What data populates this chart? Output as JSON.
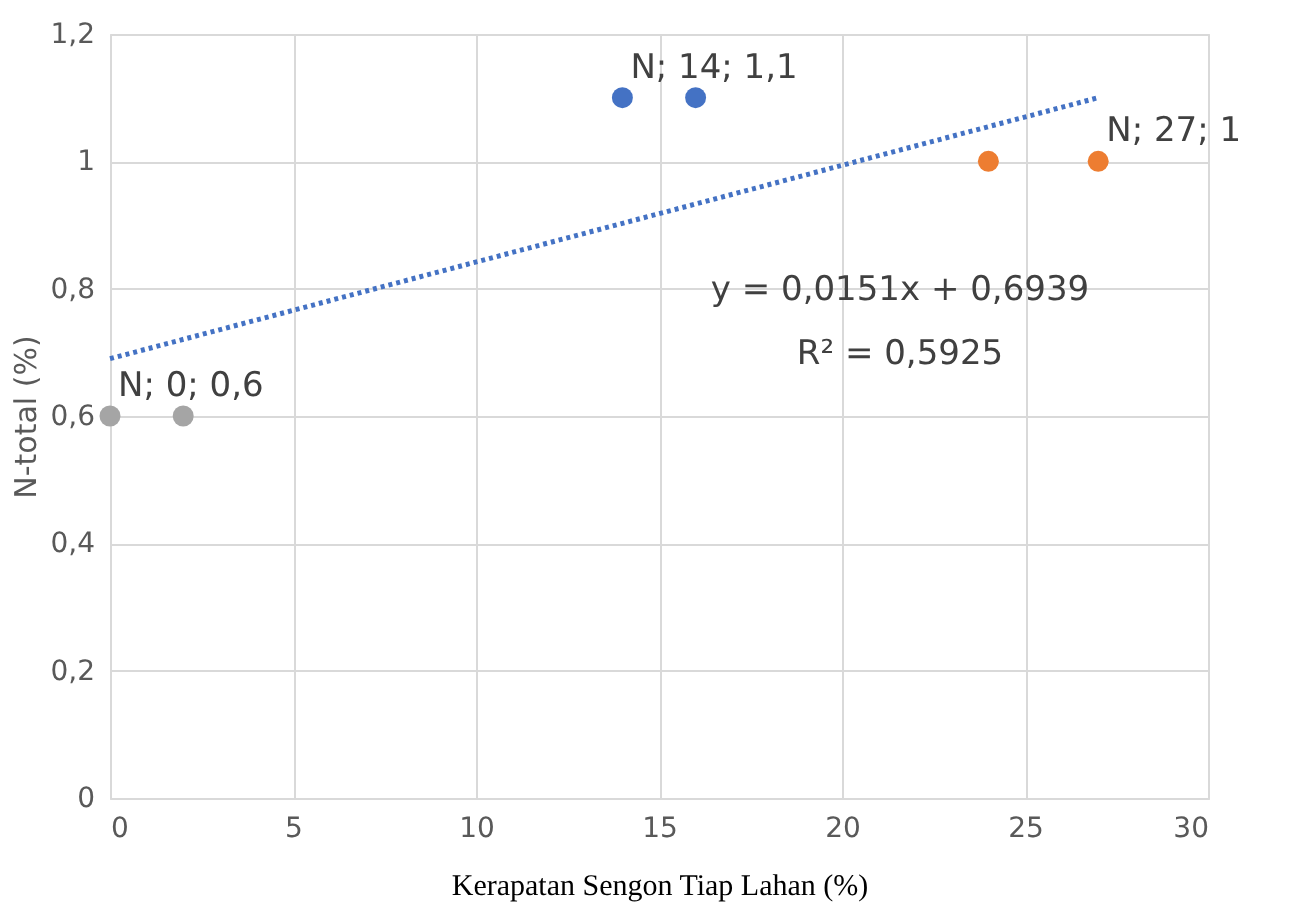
{
  "chart_data": {
    "type": "scatter",
    "xlabel": "Kerapatan Sengon Tiap Lahan (%)",
    "ylabel": "N-total (%)",
    "xlim": [
      0,
      30
    ],
    "xticks": [
      0,
      5,
      10,
      15,
      20,
      25,
      30
    ],
    "ylim": [
      0,
      1.2
    ],
    "yticks": [
      0,
      {
        "value": 0.2,
        "label": "0,2"
      },
      {
        "value": 0.4,
        "label": "0,4"
      },
      {
        "value": 0.6,
        "label": "0,6"
      },
      {
        "value": 0.8,
        "label": "0,8"
      },
      1,
      {
        "value": 1.2,
        "label": "1,2"
      }
    ],
    "grid": true,
    "marker": "circle",
    "series": [
      {
        "color": "#a5a5a5",
        "x": [
          0,
          2
        ],
        "values": [
          0.6,
          0.6
        ]
      },
      {
        "color": "#4472c4",
        "x": [
          14,
          16
        ],
        "values": [
          1.1,
          1.1
        ]
      },
      {
        "color": "#ed7d31",
        "x": [
          24,
          27
        ],
        "values": [
          1,
          1
        ]
      },
      {
        "type": "line",
        "marker": "none",
        "line_style": "dotted",
        "color": "#4472c4",
        "x": [
          0,
          27
        ],
        "values": [
          0.69,
          1.1
        ]
      }
    ],
    "annotations": [
      {
        "text": "N; 0; 0,6",
        "x": 0,
        "y": 0.6
      },
      {
        "text": "N; 14; 1,1",
        "x": 14,
        "y": 1.1
      },
      {
        "text": "N; 27; 1",
        "x": 27,
        "y": 1
      },
      "y = 0,0151x + 0,6939",
      "R² = 0,5925"
    ]
  }
}
